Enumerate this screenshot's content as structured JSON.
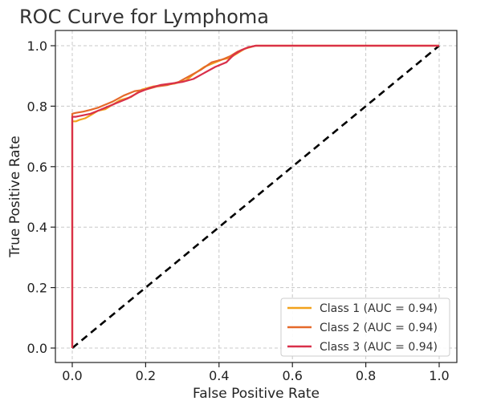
{
  "chart_data": {
    "type": "line",
    "title": "ROC Curve for Lymphoma",
    "xlabel": "False Positive Rate",
    "ylabel": "True Positive Rate",
    "xlim": [
      0.0,
      1.0
    ],
    "ylim": [
      0.0,
      1.0
    ],
    "xticks": [
      "0.0",
      "0.2",
      "0.4",
      "0.6",
      "0.8",
      "1.0"
    ],
    "yticks": [
      "0.0",
      "0.2",
      "0.4",
      "0.6",
      "0.8",
      "1.0"
    ],
    "grid": true,
    "legend_position": "bottom-right",
    "diagonal": {
      "x": [
        0,
        1
      ],
      "y": [
        0,
        1
      ],
      "color": "#000000",
      "style": "dashed"
    },
    "series": [
      {
        "name": "Class 1 (AUC = 0.94)",
        "color": "#f2a21b",
        "x": [
          0,
          0,
          0.01,
          0.02,
          0.035,
          0.05,
          0.07,
          0.09,
          0.11,
          0.13,
          0.16,
          0.19,
          0.22,
          0.25,
          0.28,
          0.31,
          0.33,
          0.36,
          0.39,
          0.41,
          0.43,
          0.45,
          0.47,
          0.5,
          1.0
        ],
        "y": [
          0,
          0.75,
          0.75,
          0.755,
          0.76,
          0.77,
          0.785,
          0.79,
          0.805,
          0.82,
          0.83,
          0.855,
          0.865,
          0.87,
          0.875,
          0.885,
          0.905,
          0.93,
          0.945,
          0.955,
          0.96,
          0.975,
          0.99,
          1.0,
          1.0
        ]
      },
      {
        "name": "Class 2 (AUC = 0.94)",
        "color": "#e5692a",
        "x": [
          0,
          0,
          0.01,
          0.03,
          0.05,
          0.07,
          0.09,
          0.11,
          0.14,
          0.17,
          0.2,
          0.23,
          0.26,
          0.29,
          0.32,
          0.35,
          0.38,
          0.41,
          0.43,
          0.45,
          0.48,
          0.5,
          1.0
        ],
        "y": [
          0,
          0.775,
          0.778,
          0.782,
          0.788,
          0.795,
          0.805,
          0.815,
          0.835,
          0.85,
          0.855,
          0.865,
          0.87,
          0.88,
          0.9,
          0.92,
          0.945,
          0.955,
          0.965,
          0.98,
          0.995,
          1.0,
          1.0
        ]
      },
      {
        "name": "Class 3 (AUC = 0.94)",
        "color": "#d9304a",
        "x": [
          0,
          0,
          0.01,
          0.03,
          0.05,
          0.07,
          0.09,
          0.12,
          0.15,
          0.18,
          0.21,
          0.24,
          0.27,
          0.3,
          0.33,
          0.36,
          0.39,
          0.42,
          0.44,
          0.46,
          0.48,
          0.5,
          1.0
        ],
        "y": [
          0,
          0.765,
          0.765,
          0.77,
          0.775,
          0.785,
          0.795,
          0.81,
          0.825,
          0.845,
          0.86,
          0.87,
          0.875,
          0.88,
          0.89,
          0.91,
          0.93,
          0.945,
          0.97,
          0.985,
          0.995,
          1.0,
          1.0
        ]
      }
    ]
  }
}
